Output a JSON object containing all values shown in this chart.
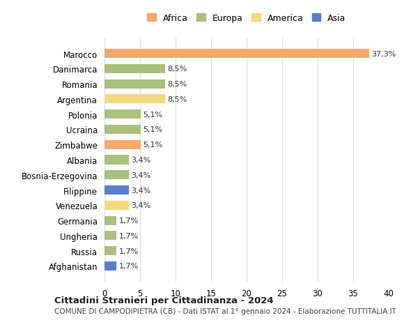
{
  "countries": [
    "Marocco",
    "Danimarca",
    "Romania",
    "Argentina",
    "Polonia",
    "Ucraina",
    "Zimbabwe",
    "Albania",
    "Bosnia-Erzegovina",
    "Filippine",
    "Venezuela",
    "Germania",
    "Ungheria",
    "Russia",
    "Afghanistan"
  ],
  "values": [
    37.3,
    8.5,
    8.5,
    8.5,
    5.1,
    5.1,
    5.1,
    3.4,
    3.4,
    3.4,
    3.4,
    1.7,
    1.7,
    1.7,
    1.7
  ],
  "labels": [
    "37,3%",
    "8,5%",
    "8,5%",
    "8,5%",
    "5,1%",
    "5,1%",
    "5,1%",
    "3,4%",
    "3,4%",
    "3,4%",
    "3,4%",
    "1,7%",
    "1,7%",
    "1,7%",
    "1,7%"
  ],
  "continents": [
    "Africa",
    "Europa",
    "Europa",
    "America",
    "Europa",
    "Europa",
    "Africa",
    "Europa",
    "Europa",
    "Asia",
    "America",
    "Europa",
    "Europa",
    "Europa",
    "Asia"
  ],
  "continent_colors": {
    "Africa": "#F4A96D",
    "Europa": "#A8C17E",
    "America": "#F5D87A",
    "Asia": "#5B7EC9"
  },
  "legend_order": [
    "Africa",
    "Europa",
    "America",
    "Asia"
  ],
  "title1": "Cittadini Stranieri per Cittadinanza - 2024",
  "title2": "COMUNE DI CAMPODIPIETRA (CB) - Dati ISTAT al 1° gennaio 2024 - Elaborazione TUTTITALIA.IT",
  "xlim": [
    0,
    40
  ],
  "xticks": [
    0,
    5,
    10,
    15,
    20,
    25,
    30,
    35,
    40
  ],
  "bar_height": 0.6,
  "background_color": "#ffffff",
  "grid_color": "#dddddd"
}
